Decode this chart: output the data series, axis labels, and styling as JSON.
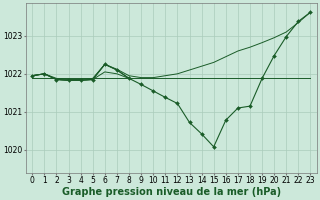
{
  "bg_color": "#cce8da",
  "grid_color": "#aaccbb",
  "line_color": "#1a5c28",
  "xlabel": "Graphe pression niveau de la mer (hPa)",
  "xlabel_fontsize": 7,
  "tick_fontsize": 5.5,
  "ylabel_ticks": [
    1020,
    1021,
    1022,
    1023
  ],
  "xlim": [
    -0.5,
    23.5
  ],
  "ylim": [
    1019.4,
    1023.85
  ],
  "hours": [
    0,
    1,
    2,
    3,
    4,
    5,
    6,
    7,
    8,
    9,
    10,
    11,
    12,
    13,
    14,
    15,
    16,
    17,
    18,
    19,
    20,
    21,
    22,
    23
  ],
  "line_flat": [
    1021.88,
    1021.88,
    1021.88,
    1021.88,
    1021.88,
    1021.88,
    1021.88,
    1021.88,
    1021.88,
    1021.88,
    1021.88,
    1021.88,
    1021.88,
    1021.88,
    1021.88,
    1021.88,
    1021.88,
    1021.88,
    1021.88,
    1021.88,
    1021.88,
    1021.88,
    1021.88,
    1021.88
  ],
  "line_upper": [
    1021.95,
    1022.0,
    1021.88,
    1021.85,
    1021.85,
    1021.88,
    1022.25,
    1022.12,
    1021.95,
    1021.9,
    1021.9,
    1021.95,
    1022.0,
    1022.1,
    1022.2,
    1022.3,
    1022.45,
    1022.6,
    1022.7,
    1022.82,
    1022.95,
    1023.1,
    1023.35,
    1023.62
  ],
  "line_main_x": [
    0,
    1,
    2,
    3,
    4,
    5,
    6,
    7,
    8,
    9,
    10,
    11,
    12,
    13,
    14,
    15,
    16,
    17,
    18,
    19,
    20,
    21,
    22,
    23
  ],
  "line_main": [
    1021.95,
    1022.0,
    1021.85,
    1021.83,
    1021.83,
    1021.85,
    1022.25,
    1022.1,
    1021.88,
    1021.72,
    1021.55,
    1021.38,
    1021.22,
    1020.72,
    1020.42,
    1020.08,
    1020.78,
    1021.1,
    1021.15,
    1021.88,
    1022.48,
    1022.98,
    1023.38,
    1023.62
  ],
  "line_extra1_x": [
    0,
    1,
    2,
    3,
    4,
    5,
    6,
    7,
    8
  ],
  "line_extra1": [
    1021.95,
    1022.0,
    1021.85,
    1021.83,
    1021.83,
    1021.85,
    1022.25,
    1022.1,
    1021.88
  ],
  "line_extra2_x": [
    0,
    1,
    2,
    3,
    4,
    5,
    6,
    7,
    8
  ],
  "line_extra2": [
    1021.95,
    1022.0,
    1021.85,
    1021.83,
    1021.83,
    1021.85,
    1022.05,
    1022.0,
    1021.88
  ]
}
